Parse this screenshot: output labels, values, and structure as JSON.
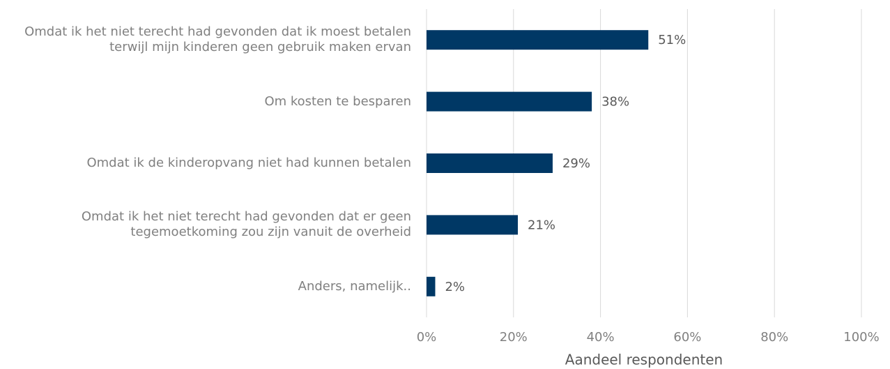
{
  "chart_data": {
    "type": "bar",
    "orientation": "horizontal",
    "x_label": "Aandeel respondenten",
    "categories": [
      "Omdat ik het niet terecht had gevonden dat ik moest betalen terwijl mijn kinderen geen gebruik maken ervan",
      "Om kosten te besparen",
      "Omdat ik de kinderopvang niet had kunnen betalen",
      "Omdat ik het niet terecht had gevonden dat er geen tegemoetkoming zou zijn vanuit de overheid",
      "Anders, namelijk.."
    ],
    "values": [
      51,
      38,
      29,
      21,
      2
    ],
    "value_labels": [
      "51%",
      "38%",
      "29%",
      "21%",
      "2%"
    ],
    "color": "#003865",
    "xlim": [
      0,
      100
    ],
    "xticks": [
      {
        "value": 0,
        "label": "0%"
      },
      {
        "value": 20,
        "label": "20%"
      },
      {
        "value": 40,
        "label": "40%"
      },
      {
        "value": 60,
        "label": "60%"
      },
      {
        "value": 80,
        "label": "80%"
      },
      {
        "value": 100,
        "label": "100%"
      }
    ],
    "grid": true
  }
}
